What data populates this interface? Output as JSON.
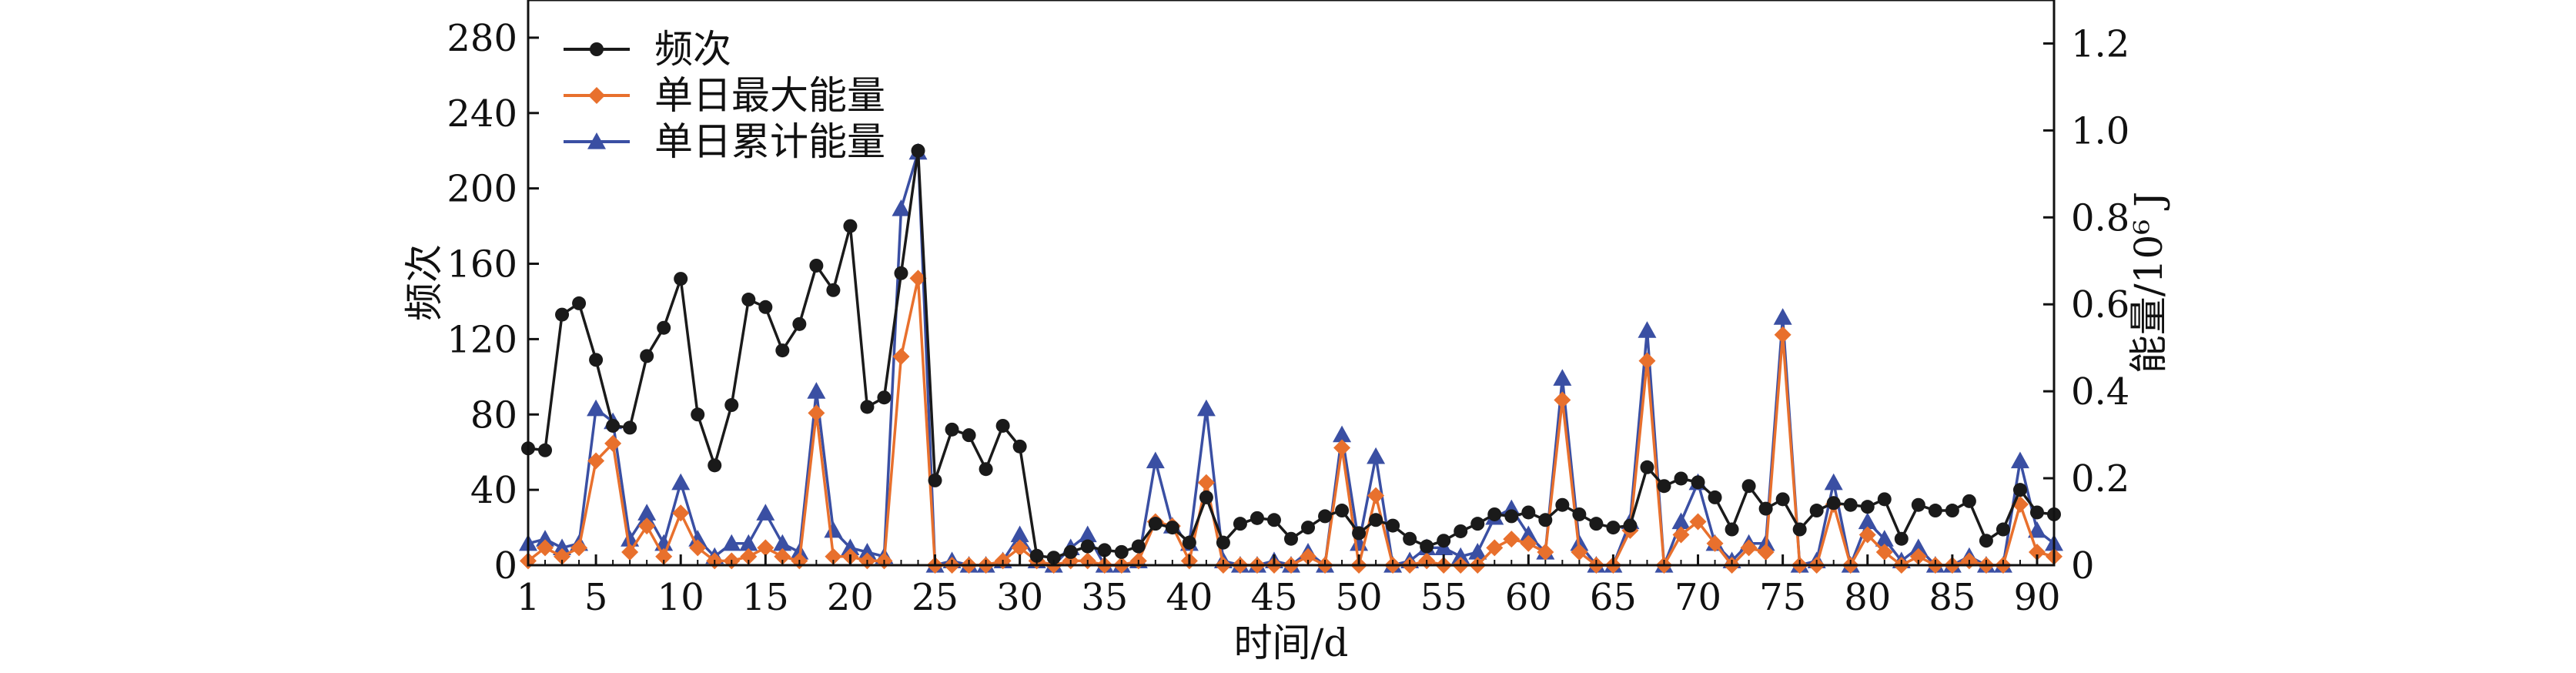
{
  "chart_data": {
    "type": "line",
    "xlabel": "时间/d",
    "ylabel": "频次",
    "ylabel_right": "能量/10⁶ J",
    "xlim": [
      1,
      91
    ],
    "ylim": [
      0,
      300
    ],
    "ylim_right": [
      0,
      1.3
    ],
    "x_ticks": [
      1,
      5,
      10,
      15,
      20,
      25,
      30,
      35,
      40,
      45,
      50,
      55,
      60,
      65,
      70,
      75,
      80,
      85,
      90
    ],
    "y_ticks": [
      0,
      40,
      80,
      120,
      160,
      200,
      240,
      280
    ],
    "y_ticks_right": [
      0,
      0.2,
      0.4,
      0.6,
      0.8,
      1.0,
      1.2
    ],
    "y_ticks_right_labels": [
      "0",
      "0.2",
      "0.4",
      "0.6",
      "0.8",
      "1.0",
      "1.2"
    ],
    "grid": false,
    "legend_position": "top-left",
    "x": [
      1,
      2,
      3,
      4,
      5,
      6,
      7,
      8,
      9,
      10,
      11,
      12,
      13,
      14,
      15,
      16,
      17,
      18,
      19,
      20,
      21,
      22,
      23,
      24,
      25,
      26,
      27,
      28,
      29,
      30,
      31,
      32,
      33,
      34,
      35,
      36,
      37,
      38,
      39,
      40,
      41,
      42,
      43,
      44,
      45,
      46,
      47,
      48,
      49,
      50,
      51,
      52,
      53,
      54,
      55,
      56,
      57,
      58,
      59,
      60,
      61,
      62,
      63,
      64,
      65,
      66,
      67,
      68,
      69,
      70,
      71,
      72,
      73,
      74,
      75,
      76,
      77,
      78,
      79,
      80,
      81,
      82,
      83,
      84,
      85,
      86,
      87,
      88,
      89,
      90,
      91
    ],
    "series": [
      {
        "name": "频次",
        "axis": "left",
        "color": "#1a1a1a",
        "marker": "circle",
        "values": [
          62,
          61,
          133,
          139,
          109,
          74,
          73,
          111,
          126,
          152,
          80,
          53,
          85,
          141,
          137,
          114,
          128,
          159,
          146,
          180,
          84,
          89,
          155,
          220,
          45,
          72,
          69,
          51,
          74,
          63,
          5,
          4,
          7,
          10,
          8,
          7,
          10,
          22,
          20,
          12,
          36,
          12,
          22,
          25,
          24,
          14,
          20,
          26,
          29,
          17,
          24,
          21,
          14,
          10,
          13,
          18,
          22,
          27,
          26,
          28,
          24,
          32,
          27,
          22,
          20,
          21,
          52,
          42,
          46,
          44,
          36,
          19,
          42,
          30,
          35,
          19,
          29,
          33,
          32,
          31,
          35,
          14,
          32,
          29,
          29,
          34,
          13,
          19,
          40,
          28,
          27
        ]
      },
      {
        "name": "单日最大能量",
        "axis": "right",
        "color": "#e8702d",
        "marker": "diamond",
        "values": [
          0.01,
          0.04,
          0.02,
          0.04,
          0.24,
          0.28,
          0.03,
          0.09,
          0.02,
          0.12,
          0.04,
          0.01,
          0.01,
          0.02,
          0.04,
          0.02,
          0.01,
          0.35,
          0.02,
          0.02,
          0.01,
          0.01,
          0.48,
          0.66,
          0.0,
          0.0,
          0.0,
          0.0,
          0.01,
          0.04,
          0.01,
          0.0,
          0.01,
          0.01,
          0.0,
          0.0,
          0.01,
          0.1,
          0.09,
          0.01,
          0.19,
          0.0,
          0.0,
          0.0,
          0.0,
          0.0,
          0.02,
          0.0,
          0.27,
          0.0,
          0.16,
          0.0,
          0.0,
          0.01,
          0.0,
          0.0,
          0.0,
          0.04,
          0.06,
          0.05,
          0.03,
          0.38,
          0.03,
          0.0,
          0.0,
          0.08,
          0.47,
          0.0,
          0.07,
          0.1,
          0.05,
          0.0,
          0.04,
          0.03,
          0.53,
          0.0,
          0.0,
          0.14,
          0.0,
          0.07,
          0.03,
          0.0,
          0.02,
          0.0,
          0.0,
          0.01,
          0.0,
          0.0,
          0.14,
          0.03,
          0.02
        ]
      },
      {
        "name": "单日累计能量",
        "axis": "right",
        "color": "#3a4fa3",
        "marker": "triangle",
        "values": [
          0.05,
          0.06,
          0.04,
          0.05,
          0.36,
          0.33,
          0.06,
          0.12,
          0.05,
          0.19,
          0.06,
          0.02,
          0.05,
          0.05,
          0.12,
          0.05,
          0.03,
          0.4,
          0.08,
          0.04,
          0.03,
          0.02,
          0.82,
          0.95,
          0.0,
          0.01,
          0.0,
          0.0,
          0.01,
          0.07,
          0.01,
          0.0,
          0.04,
          0.07,
          0.0,
          0.0,
          0.01,
          0.24,
          0.09,
          0.05,
          0.36,
          0.01,
          0.0,
          0.0,
          0.01,
          0.0,
          0.03,
          0.0,
          0.3,
          0.05,
          0.25,
          0.0,
          0.01,
          0.04,
          0.04,
          0.02,
          0.03,
          0.11,
          0.13,
          0.07,
          0.03,
          0.43,
          0.05,
          0.0,
          0.0,
          0.1,
          0.54,
          0.0,
          0.1,
          0.19,
          0.05,
          0.01,
          0.05,
          0.05,
          0.57,
          0.0,
          0.01,
          0.19,
          0.0,
          0.1,
          0.06,
          0.01,
          0.04,
          0.0,
          0.0,
          0.02,
          0.0,
          0.0,
          0.24,
          0.08,
          0.05
        ]
      }
    ]
  }
}
